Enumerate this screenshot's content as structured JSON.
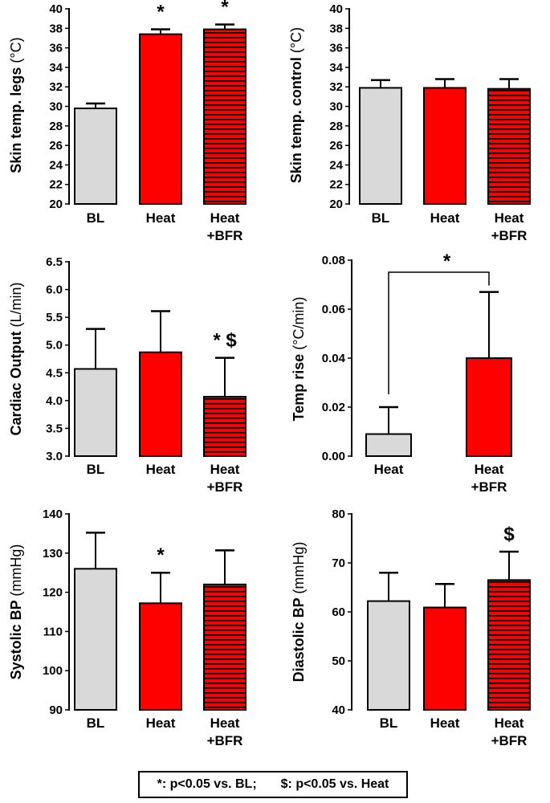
{
  "colors": {
    "bl": "#d9d9d9",
    "heat": "#ff0000",
    "heat_bfr": "#ff0000",
    "stripe": "#000000",
    "axis": "#000000"
  },
  "legend": {
    "bl_note": "*: p<0.05 vs. BL;",
    "heat_note": "$: p<0.05 vs. Heat"
  },
  "chart_data": [
    {
      "id": "skin-legs",
      "type": "bar",
      "ylabel": "Skin temp. legs",
      "yunit": "(°C)",
      "ylim": [
        20,
        40
      ],
      "yticks": [
        20,
        22,
        24,
        26,
        28,
        30,
        32,
        34,
        36,
        38,
        40
      ],
      "decimals": 0,
      "categories": [
        [
          "BL"
        ],
        [
          "Heat"
        ],
        [
          "Heat",
          "+BFR"
        ]
      ],
      "values": [
        29.8,
        37.4,
        37.9
      ],
      "errors": [
        0.5,
        0.5,
        0.5
      ],
      "fills": [
        "bl",
        "heat",
        "heat_bfr"
      ],
      "annotations": [
        "",
        "*",
        "*"
      ]
    },
    {
      "id": "skin-control",
      "type": "bar",
      "ylabel": "Skin temp. control",
      "yunit": "(°C)",
      "ylim": [
        20,
        40
      ],
      "yticks": [
        20,
        22,
        24,
        26,
        28,
        30,
        32,
        34,
        36,
        38,
        40
      ],
      "decimals": 0,
      "categories": [
        [
          "BL"
        ],
        [
          "Heat"
        ],
        [
          "Heat",
          "+BFR"
        ]
      ],
      "values": [
        31.9,
        31.9,
        31.8
      ],
      "errors": [
        0.8,
        0.9,
        1.0
      ],
      "fills": [
        "bl",
        "heat",
        "heat_bfr"
      ],
      "annotations": [
        "",
        "",
        ""
      ]
    },
    {
      "id": "cardiac-output",
      "type": "bar",
      "ylabel": "Cardiac Output",
      "yunit": "(L/min)",
      "ylim": [
        3.0,
        6.5
      ],
      "yticks": [
        3.0,
        3.5,
        4.0,
        4.5,
        5.0,
        5.5,
        6.0,
        6.5
      ],
      "decimals": 1,
      "categories": [
        [
          "BL"
        ],
        [
          "Heat"
        ],
        [
          "Heat",
          "+BFR"
        ]
      ],
      "values": [
        4.57,
        4.87,
        4.07
      ],
      "errors": [
        0.72,
        0.74,
        0.7
      ],
      "fills": [
        "bl",
        "heat",
        "heat_bfr"
      ],
      "annotations": [
        "",
        "",
        "* $"
      ]
    },
    {
      "id": "temp-rise",
      "type": "bar",
      "ylabel": "Temp rise",
      "yunit": "(°C/min)",
      "ylim": [
        0,
        0.08
      ],
      "yticks": [
        0,
        0.02,
        0.04,
        0.06,
        0.08
      ],
      "decimals": 2,
      "categories": [
        [
          "Heat"
        ],
        [
          "Heat",
          "+BFR"
        ]
      ],
      "values": [
        0.009,
        0.04
      ],
      "errors": [
        0.011,
        0.027
      ],
      "fills": [
        "bl",
        "heat"
      ],
      "annotations": [
        "",
        ""
      ],
      "bracket": {
        "from": 0,
        "to": 1,
        "label": "*"
      }
    },
    {
      "id": "systolic-bp",
      "type": "bar",
      "ylabel": "Systolic BP",
      "yunit": "(mmHg)",
      "ylim": [
        90,
        140
      ],
      "yticks": [
        90,
        100,
        110,
        120,
        130,
        140
      ],
      "decimals": 0,
      "categories": [
        [
          "BL"
        ],
        [
          "Heat"
        ],
        [
          "Heat",
          "+BFR"
        ]
      ],
      "values": [
        126,
        117.2,
        122
      ],
      "errors": [
        9.2,
        7.8,
        8.7
      ],
      "fills": [
        "bl",
        "heat",
        "heat_bfr"
      ],
      "annotations": [
        "",
        "*",
        ""
      ]
    },
    {
      "id": "diastolic-bp",
      "type": "bar",
      "ylabel": "Diastolic BP",
      "yunit": "(mmHg)",
      "ylim": [
        40,
        80
      ],
      "yticks": [
        40,
        50,
        60,
        70,
        80
      ],
      "decimals": 0,
      "categories": [
        [
          "BL"
        ],
        [
          "Heat"
        ],
        [
          "Heat",
          "+BFR"
        ]
      ],
      "values": [
        62.2,
        60.9,
        66.5
      ],
      "errors": [
        5.8,
        4.8,
        5.8
      ],
      "fills": [
        "bl",
        "heat",
        "heat_bfr"
      ],
      "annotations": [
        "",
        "",
        "$"
      ]
    }
  ]
}
